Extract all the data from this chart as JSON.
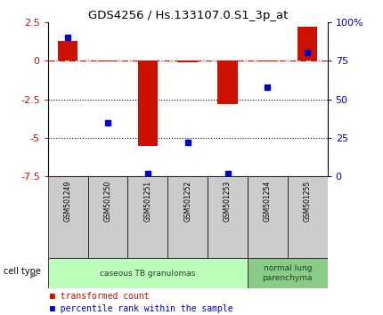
{
  "title": "GDS4256 / Hs.133107.0.S1_3p_at",
  "samples": [
    "GSM501249",
    "GSM501250",
    "GSM501251",
    "GSM501252",
    "GSM501253",
    "GSM501254",
    "GSM501255"
  ],
  "transformed_count": [
    1.3,
    -0.05,
    -5.5,
    -0.1,
    -2.8,
    -0.05,
    2.2
  ],
  "percentile_rank": [
    90,
    35,
    2,
    22,
    2,
    58,
    80
  ],
  "ylim_left": [
    -7.5,
    2.5
  ],
  "ylim_right": [
    0,
    100
  ],
  "left_ticks": [
    2.5,
    0,
    -2.5,
    -5,
    -7.5
  ],
  "right_ticks": [
    100,
    75,
    50,
    25,
    0
  ],
  "right_tick_labels": [
    "100%",
    "75",
    "50",
    "25",
    "0"
  ],
  "hlines": [
    -2.5,
    -5.0
  ],
  "bar_color": "#cc1100",
  "dot_color": "#0000cc",
  "cell_type_groups": [
    {
      "label": "caseous TB granulomas",
      "indices": [
        0,
        1,
        2,
        3,
        4
      ],
      "color": "#bbffbb"
    },
    {
      "label": "normal lung\nparenchyma",
      "indices": [
        5,
        6
      ],
      "color": "#88cc88"
    }
  ],
  "legend_items": [
    {
      "color": "#cc1100",
      "label": " transformed count"
    },
    {
      "color": "#0000cc",
      "label": " percentile rank within the sample"
    }
  ],
  "cell_type_label": "cell type",
  "xticklabel_bg": "#cccccc",
  "background_color": "#ffffff"
}
